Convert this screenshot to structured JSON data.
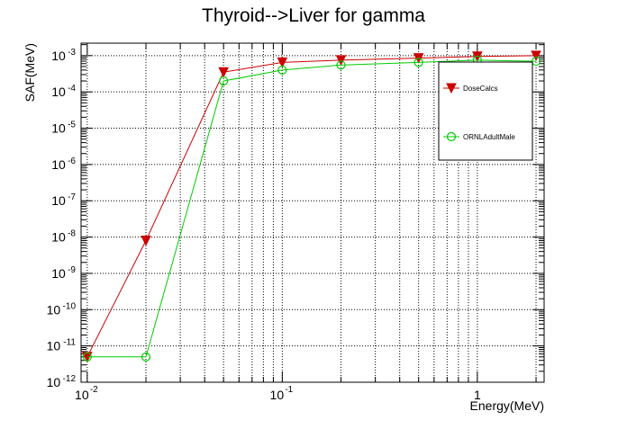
{
  "chart_data": {
    "type": "line",
    "title": "Thyroid-->Liver for gamma",
    "xlabel": "Energy(MeV)",
    "ylabel": "SAF(MeV)",
    "x_scale": "log",
    "y_scale": "log",
    "xlim": [
      0.0093,
      2.2
    ],
    "ylim": [
      1e-12,
      0.0022
    ],
    "grid": true,
    "legend_position": "top-right",
    "x_ticks": [
      {
        "value": 0.01,
        "base": "10",
        "exp": "-2"
      },
      {
        "value": 0.1,
        "base": "10",
        "exp": "-1"
      },
      {
        "value": 1,
        "base": "1",
        "exp": ""
      }
    ],
    "y_ticks": [
      {
        "value": 1e-12,
        "base": "10",
        "exp": "-12"
      },
      {
        "value": 1e-11,
        "base": "10",
        "exp": "-11"
      },
      {
        "value": 1e-10,
        "base": "10",
        "exp": "-10"
      },
      {
        "value": 1e-09,
        "base": "10",
        "exp": "-9"
      },
      {
        "value": 1e-08,
        "base": "10",
        "exp": "-8"
      },
      {
        "value": 1e-07,
        "base": "10",
        "exp": "-7"
      },
      {
        "value": 1e-06,
        "base": "10",
        "exp": "-6"
      },
      {
        "value": 1e-05,
        "base": "10",
        "exp": "-5"
      },
      {
        "value": 0.0001,
        "base": "10",
        "exp": "-4"
      },
      {
        "value": 0.001,
        "base": "10",
        "exp": "-3"
      }
    ],
    "series": [
      {
        "name": "DoseCalcs",
        "color": "#cc0000",
        "marker": "triangle-down",
        "x": [
          0.01,
          0.02,
          0.05,
          0.1,
          0.2,
          0.5,
          1,
          2
        ],
        "y": [
          5e-12,
          8e-09,
          0.00035,
          0.00065,
          0.00075,
          0.00085,
          0.00095,
          0.001
        ]
      },
      {
        "name": "ORNLAdultMale",
        "color": "#00cc00",
        "marker": "circle-open",
        "x": [
          0.01,
          0.02,
          0.05,
          0.1,
          0.2,
          0.5,
          1,
          2
        ],
        "y": [
          5e-12,
          5e-12,
          0.0002,
          0.0004,
          0.00055,
          0.00065,
          0.00075,
          0.0007
        ]
      }
    ]
  }
}
